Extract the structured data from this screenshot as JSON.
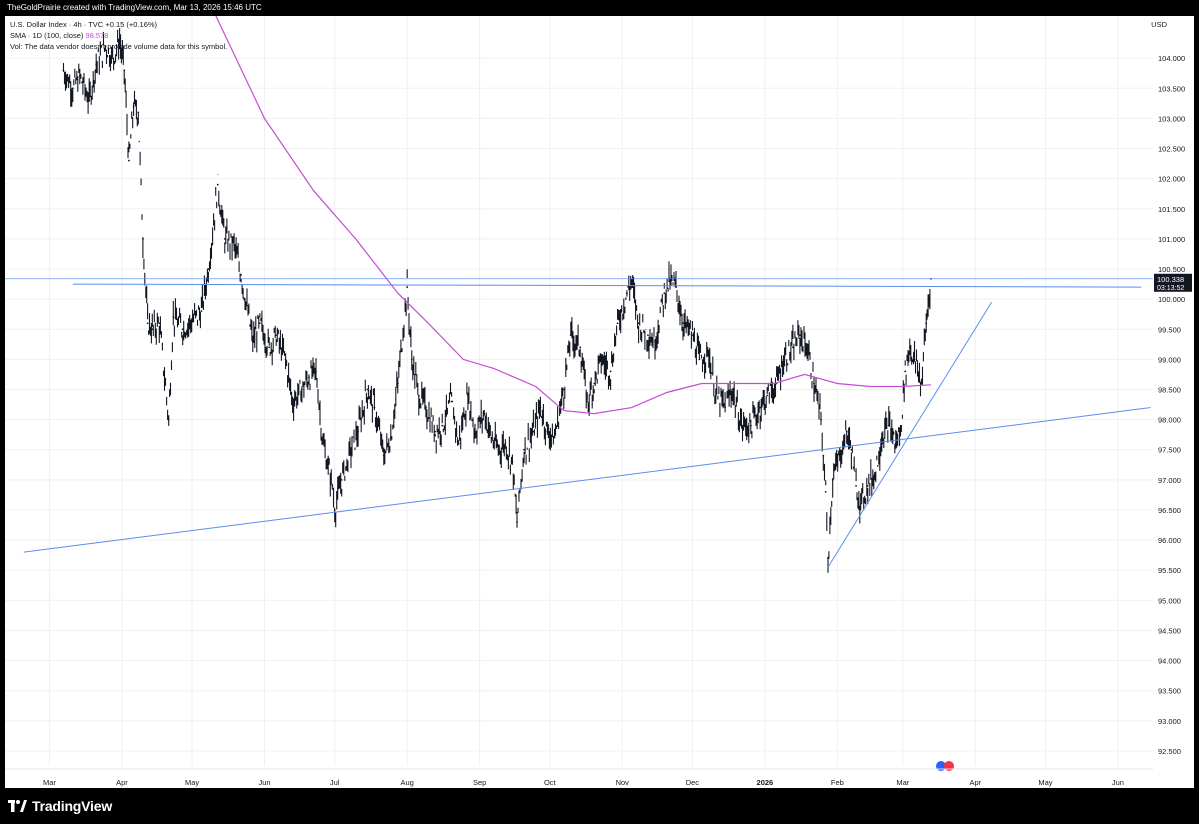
{
  "header": {
    "attribution": "TheGoldPrairie created with TradingView.com, Mar 13, 2026 15:46 UTC"
  },
  "legend": {
    "symbol_line": "U.S. Dollar Index · 4h · TVC",
    "change": "+0.15 (+0.16%)",
    "sma_label": "SMA · 1D (100, close)",
    "sma_value": "98.578",
    "volume_note": "Vol: The data vendor doesn't provide volume data for this symbol."
  },
  "price_axis": {
    "currency": "USD",
    "last_price": "100.338",
    "countdown": "03:13:52"
  },
  "footer": {
    "brand": "TradingView"
  },
  "colors": {
    "candles": "#131722",
    "sma": "#c74bd6",
    "trendlines": "#5b8def",
    "price_line": "#5b8def",
    "grid": "#eef0f3",
    "axis_text": "#131722"
  },
  "chart_data": {
    "type": "line",
    "title": "U.S. Dollar Index · 4h · TVC",
    "ylabel": "USD",
    "ylim": [
      92.25,
      104.7
    ],
    "grid": true,
    "y_ticks": [
      "104.000",
      "103.500",
      "103.000",
      "102.500",
      "102.000",
      "101.500",
      "101.000",
      "100.500",
      "100.000",
      "99.500",
      "99.000",
      "98.500",
      "98.000",
      "97.500",
      "97.000",
      "96.500",
      "96.000",
      "95.500",
      "95.000",
      "94.500",
      "94.000",
      "93.500",
      "93.000",
      "92.500"
    ],
    "x_ticks": [
      {
        "label": "Mar",
        "date": "2025-03-01"
      },
      {
        "label": "Apr",
        "date": "2025-04-01"
      },
      {
        "label": "May",
        "date": "2025-05-01"
      },
      {
        "label": "Jun",
        "date": "2025-06-01"
      },
      {
        "label": "Jul",
        "date": "2025-07-01"
      },
      {
        "label": "Aug",
        "date": "2025-08-01"
      },
      {
        "label": "Sep",
        "date": "2025-09-01"
      },
      {
        "label": "Oct",
        "date": "2025-10-01"
      },
      {
        "label": "Nov",
        "date": "2025-11-01"
      },
      {
        "label": "Dec",
        "date": "2025-12-01"
      },
      {
        "label": "2026",
        "date": "2026-01-01"
      },
      {
        "label": "Feb",
        "date": "2026-02-01"
      },
      {
        "label": "Mar",
        "date": "2026-03-01"
      },
      {
        "label": "Apr",
        "date": "2026-04-01"
      },
      {
        "label": "May",
        "date": "2026-05-01"
      },
      {
        "label": "Jun",
        "date": "2026-06-01"
      }
    ],
    "series": [
      {
        "name": "U.S. Dollar Index",
        "points": [
          {
            "x": "2025-03-07",
            "y": 103.8
          },
          {
            "x": "2025-03-11",
            "y": 103.5
          },
          {
            "x": "2025-03-14",
            "y": 103.7
          },
          {
            "x": "2025-03-18",
            "y": 103.3
          },
          {
            "x": "2025-03-21",
            "y": 103.9
          },
          {
            "x": "2025-03-25",
            "y": 104.2
          },
          {
            "x": "2025-03-28",
            "y": 104.0
          },
          {
            "x": "2025-03-31",
            "y": 104.3
          },
          {
            "x": "2025-04-02",
            "y": 103.8
          },
          {
            "x": "2025-04-04",
            "y": 102.3
          },
          {
            "x": "2025-04-06",
            "y": 103.2
          },
          {
            "x": "2025-04-08",
            "y": 103.1
          },
          {
            "x": "2025-04-10",
            "y": 101.0
          },
          {
            "x": "2025-04-12",
            "y": 99.6
          },
          {
            "x": "2025-04-14",
            "y": 99.5
          },
          {
            "x": "2025-04-17",
            "y": 99.6
          },
          {
            "x": "2025-04-21",
            "y": 98.0
          },
          {
            "x": "2025-04-23",
            "y": 99.7
          },
          {
            "x": "2025-04-27",
            "y": 99.5
          },
          {
            "x": "2025-04-30",
            "y": 99.6
          },
          {
            "x": "2025-05-05",
            "y": 99.8
          },
          {
            "x": "2025-05-08",
            "y": 100.5
          },
          {
            "x": "2025-05-12",
            "y": 101.9
          },
          {
            "x": "2025-05-15",
            "y": 101.0
          },
          {
            "x": "2025-05-19",
            "y": 100.9
          },
          {
            "x": "2025-05-22",
            "y": 100.4
          },
          {
            "x": "2025-05-27",
            "y": 99.3
          },
          {
            "x": "2025-05-30",
            "y": 99.6
          },
          {
            "x": "2025-06-03",
            "y": 99.2
          },
          {
            "x": "2025-06-06",
            "y": 99.4
          },
          {
            "x": "2025-06-10",
            "y": 99.0
          },
          {
            "x": "2025-06-13",
            "y": 98.3
          },
          {
            "x": "2025-06-17",
            "y": 98.5
          },
          {
            "x": "2025-06-20",
            "y": 98.7
          },
          {
            "x": "2025-06-23",
            "y": 98.8
          },
          {
            "x": "2025-06-26",
            "y": 97.6
          },
          {
            "x": "2025-06-30",
            "y": 96.9
          },
          {
            "x": "2025-07-01",
            "y": 96.5
          },
          {
            "x": "2025-07-04",
            "y": 97.0
          },
          {
            "x": "2025-07-08",
            "y": 97.5
          },
          {
            "x": "2025-07-11",
            "y": 97.8
          },
          {
            "x": "2025-07-15",
            "y": 98.5
          },
          {
            "x": "2025-07-18",
            "y": 98.2
          },
          {
            "x": "2025-07-22",
            "y": 97.4
          },
          {
            "x": "2025-07-25",
            "y": 97.7
          },
          {
            "x": "2025-07-28",
            "y": 98.6
          },
          {
            "x": "2025-08-01",
            "y": 100.2
          },
          {
            "x": "2025-08-03",
            "y": 99.0
          },
          {
            "x": "2025-08-06",
            "y": 98.4
          },
          {
            "x": "2025-08-09",
            "y": 98.2
          },
          {
            "x": "2025-08-13",
            "y": 97.8
          },
          {
            "x": "2025-08-16",
            "y": 97.9
          },
          {
            "x": "2025-08-20",
            "y": 98.3
          },
          {
            "x": "2025-08-23",
            "y": 97.6
          },
          {
            "x": "2025-08-27",
            "y": 98.4
          },
          {
            "x": "2025-08-30",
            "y": 97.8
          },
          {
            "x": "2025-09-03",
            "y": 98.1
          },
          {
            "x": "2025-09-06",
            "y": 97.7
          },
          {
            "x": "2025-09-09",
            "y": 97.5
          },
          {
            "x": "2025-09-12",
            "y": 97.6
          },
          {
            "x": "2025-09-15",
            "y": 97.3
          },
          {
            "x": "2025-09-17",
            "y": 96.3
          },
          {
            "x": "2025-09-20",
            "y": 97.5
          },
          {
            "x": "2025-09-24",
            "y": 97.8
          },
          {
            "x": "2025-09-27",
            "y": 98.2
          },
          {
            "x": "2025-09-30",
            "y": 97.8
          },
          {
            "x": "2025-10-03",
            "y": 97.7
          },
          {
            "x": "2025-10-07",
            "y": 98.5
          },
          {
            "x": "2025-10-10",
            "y": 99.4
          },
          {
            "x": "2025-10-14",
            "y": 99.2
          },
          {
            "x": "2025-10-17",
            "y": 98.3
          },
          {
            "x": "2025-10-20",
            "y": 98.6
          },
          {
            "x": "2025-10-23",
            "y": 99.0
          },
          {
            "x": "2025-10-27",
            "y": 98.8
          },
          {
            "x": "2025-10-30",
            "y": 99.6
          },
          {
            "x": "2025-11-03",
            "y": 100.1
          },
          {
            "x": "2025-11-05",
            "y": 100.3
          },
          {
            "x": "2025-11-08",
            "y": 99.6
          },
          {
            "x": "2025-11-12",
            "y": 99.4
          },
          {
            "x": "2025-11-15",
            "y": 99.3
          },
          {
            "x": "2025-11-19",
            "y": 100.1
          },
          {
            "x": "2025-11-21",
            "y": 100.3
          },
          {
            "x": "2025-11-24",
            "y": 100.2
          },
          {
            "x": "2025-11-27",
            "y": 99.6
          },
          {
            "x": "2025-12-01",
            "y": 99.4
          },
          {
            "x": "2025-12-04",
            "y": 99.0
          },
          {
            "x": "2025-12-08",
            "y": 99.1
          },
          {
            "x": "2025-12-11",
            "y": 98.4
          },
          {
            "x": "2025-12-15",
            "y": 98.2
          },
          {
            "x": "2025-12-18",
            "y": 98.5
          },
          {
            "x": "2025-12-22",
            "y": 97.9
          },
          {
            "x": "2025-12-26",
            "y": 97.9
          },
          {
            "x": "2025-12-30",
            "y": 98.2
          },
          {
            "x": "2026-01-02",
            "y": 98.4
          },
          {
            "x": "2026-01-06",
            "y": 98.6
          },
          {
            "x": "2026-01-09",
            "y": 99.0
          },
          {
            "x": "2026-01-13",
            "y": 99.2
          },
          {
            "x": "2026-01-16",
            "y": 99.4
          },
          {
            "x": "2026-01-19",
            "y": 99.2
          },
          {
            "x": "2026-01-22",
            "y": 98.6
          },
          {
            "x": "2026-01-25",
            "y": 98.0
          },
          {
            "x": "2026-01-26",
            "y": 97.4
          },
          {
            "x": "2026-01-27",
            "y": 96.8
          },
          {
            "x": "2026-01-28",
            "y": 95.7
          },
          {
            "x": "2026-01-30",
            "y": 97.0
          },
          {
            "x": "2026-02-02",
            "y": 97.4
          },
          {
            "x": "2026-02-05",
            "y": 97.8
          },
          {
            "x": "2026-02-07",
            "y": 97.5
          },
          {
            "x": "2026-02-09",
            "y": 96.9
          },
          {
            "x": "2026-02-11",
            "y": 96.6
          },
          {
            "x": "2026-02-14",
            "y": 96.9
          },
          {
            "x": "2026-02-17",
            "y": 97.1
          },
          {
            "x": "2026-02-20",
            "y": 97.7
          },
          {
            "x": "2026-02-23",
            "y": 97.9
          },
          {
            "x": "2026-02-26",
            "y": 97.6
          },
          {
            "x": "2026-02-28",
            "y": 97.8
          },
          {
            "x": "2026-03-02",
            "y": 98.8
          },
          {
            "x": "2026-03-04",
            "y": 99.2
          },
          {
            "x": "2026-03-06",
            "y": 99.0
          },
          {
            "x": "2026-03-09",
            "y": 98.6
          },
          {
            "x": "2026-03-11",
            "y": 99.6
          },
          {
            "x": "2026-03-13",
            "y": 100.338
          }
        ]
      },
      {
        "name": "SMA · 1D (100, close)",
        "points": [
          {
            "x": "2025-04-16",
            "y": 106.0
          },
          {
            "x": "2025-05-10",
            "y": 104.8
          },
          {
            "x": "2025-06-01",
            "y": 103.0
          },
          {
            "x": "2025-06-22",
            "y": 101.8
          },
          {
            "x": "2025-07-10",
            "y": 101.0
          },
          {
            "x": "2025-07-28",
            "y": 100.1
          },
          {
            "x": "2025-08-10",
            "y": 99.6
          },
          {
            "x": "2025-08-25",
            "y": 99.0
          },
          {
            "x": "2025-09-07",
            "y": 98.85
          },
          {
            "x": "2025-09-25",
            "y": 98.55
          },
          {
            "x": "2025-10-07",
            "y": 98.15
          },
          {
            "x": "2025-10-20",
            "y": 98.1
          },
          {
            "x": "2025-11-05",
            "y": 98.2
          },
          {
            "x": "2025-11-20",
            "y": 98.45
          },
          {
            "x": "2025-12-05",
            "y": 98.6
          },
          {
            "x": "2025-12-20",
            "y": 98.6
          },
          {
            "x": "2026-01-05",
            "y": 98.6
          },
          {
            "x": "2026-01-18",
            "y": 98.75
          },
          {
            "x": "2026-02-01",
            "y": 98.6
          },
          {
            "x": "2026-02-15",
            "y": 98.55
          },
          {
            "x": "2026-03-01",
            "y": 98.55
          },
          {
            "x": "2026-03-13",
            "y": 98.578
          }
        ]
      }
    ],
    "annotations": {
      "horizontal_lines": [
        {
          "y": 100.338,
          "kind": "last-price"
        }
      ],
      "trendlines": [
        {
          "from": {
            "x": "2025-03-11",
            "y": 100.25
          },
          "to": {
            "x": "2026-06-11",
            "y": 100.2
          }
        },
        {
          "from": {
            "x": "2025-02-18",
            "y": 95.8
          },
          "to": {
            "x": "2026-06-15",
            "y": 98.2
          }
        },
        {
          "from": {
            "x": "2026-01-28",
            "y": 95.55
          },
          "to": {
            "x": "2026-04-08",
            "y": 99.95
          }
        }
      ]
    }
  }
}
